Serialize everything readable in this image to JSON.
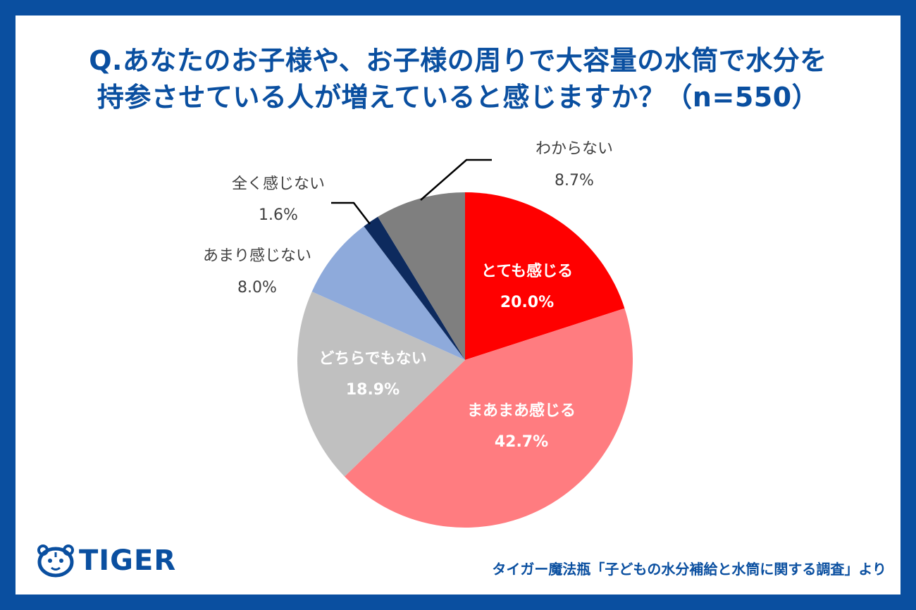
{
  "title": {
    "line1": "Q.あなたのお子様や、お子様の周りで大容量の水筒で水分を",
    "line2": "持参させている人が増えていると感じますか？（n=550）"
  },
  "brand": {
    "name": "TIGER",
    "icon": "tiger-face-icon"
  },
  "source": "タイガー魔法瓶「子どもの水分補給と水筒に関する調査」より",
  "colors": {
    "frame": "#0a4fa0",
    "accent": "#0a4fa0"
  },
  "chart_data": {
    "type": "pie",
    "start": "12 o'clock",
    "direction": "clockwise",
    "series": [
      {
        "label": "とても感じる",
        "value_label": "20.0%",
        "value": 20.0,
        "color": "#ff0000",
        "label_placement": "inside"
      },
      {
        "label": "まあまあ感じる",
        "value_label": "42.7%",
        "value": 42.7,
        "color": "#ff7c80",
        "label_placement": "inside"
      },
      {
        "label": "どちらでもない",
        "value_label": "18.9%",
        "value": 18.9,
        "color": "#c0c0c0",
        "label_placement": "inside"
      },
      {
        "label": "あまり感じない",
        "value_label": "8.0%",
        "value": 8.0,
        "color": "#8eaadb",
        "label_placement": "outside"
      },
      {
        "label": "全く感じない",
        "value_label": "1.6%",
        "value": 1.6,
        "color": "#0d2a5e",
        "label_placement": "outside-leader"
      },
      {
        "label": "わからない",
        "value_label": "8.7%",
        "value": 8.7,
        "color": "#7f7f7f",
        "label_placement": "outside-leader"
      }
    ]
  }
}
